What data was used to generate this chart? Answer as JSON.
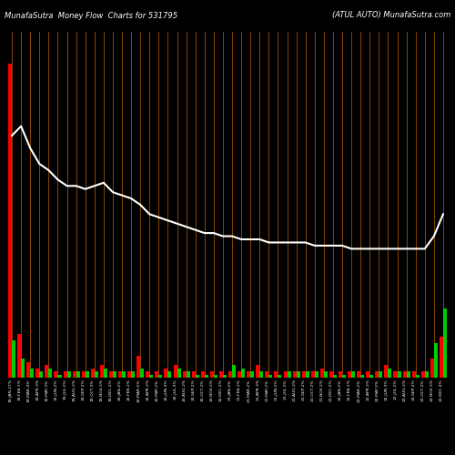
{
  "title_left": "MunafaSutra  Money Flow  Charts for 531795",
  "title_right": "(ATUL AUTO) MunafaSutra.com",
  "background_color": "#000000",
  "grid_color": "#8B4500",
  "line_color": "#ffffff",
  "red_color": "#ff0000",
  "green_color": "#00cc00",
  "categories": [
    "19-JAN-27%",
    "19-FEB-7%",
    "19-MAR-4%",
    "19-APR-3%",
    "19-MAY-3%",
    "19-JUN-2%",
    "19-JUL-2%",
    "19-AUG-2%",
    "19-SEP-2%",
    "19-OCT-3%",
    "19-NOV-3%",
    "19-DEC-2%",
    "20-JAN-2%",
    "20-FEB-2%",
    "20-MAR-5%",
    "20-APR-2%",
    "20-MAY-2%",
    "20-JUN-3%",
    "20-JUL-3%",
    "20-AUG-2%",
    "20-SEP-2%",
    "20-OCT-2%",
    "20-NOV-2%",
    "20-DEC-2%",
    "21-JAN-2%",
    "21-FEB-2%",
    "21-MAR-2%",
    "21-APR-3%",
    "21-MAY-2%",
    "21-JUN-2%",
    "21-JUL-2%",
    "21-AUG-2%",
    "21-SEP-2%",
    "21-OCT-2%",
    "21-NOV-2%",
    "21-DEC-2%",
    "22-JAN-2%",
    "22-FEB-2%",
    "22-MAR-2%",
    "22-APR-2%",
    "22-MAY-2%",
    "22-JUN-3%",
    "22-JUL-2%",
    "22-AUG-2%",
    "22-SEP-2%",
    "22-OCT-2%",
    "22-NOV-3%",
    "22-DEC-4%"
  ],
  "red_values": [
    100,
    14,
    5,
    3,
    4,
    2,
    2,
    2,
    2,
    3,
    4,
    2,
    2,
    2,
    7,
    2,
    2,
    3,
    4,
    2,
    2,
    2,
    2,
    2,
    2,
    2,
    2,
    4,
    2,
    2,
    2,
    2,
    2,
    2,
    3,
    2,
    2,
    2,
    2,
    2,
    2,
    4,
    2,
    2,
    2,
    2,
    6,
    13
  ],
  "green_values": [
    12,
    6,
    3,
    2,
    3,
    1,
    2,
    2,
    2,
    2,
    3,
    2,
    2,
    2,
    3,
    1,
    1,
    2,
    3,
    2,
    1,
    1,
    1,
    1,
    4,
    3,
    2,
    2,
    1,
    1,
    2,
    2,
    2,
    2,
    2,
    1,
    1,
    2,
    1,
    1,
    2,
    3,
    2,
    2,
    1,
    2,
    11,
    22
  ],
  "line_values": [
    77,
    80,
    73,
    68,
    66,
    63,
    61,
    61,
    60,
    61,
    62,
    59,
    58,
    57,
    55,
    52,
    51,
    50,
    49,
    48,
    47,
    46,
    46,
    45,
    45,
    44,
    44,
    44,
    43,
    43,
    43,
    43,
    43,
    42,
    42,
    42,
    42,
    41,
    41,
    41,
    41,
    41,
    41,
    41,
    41,
    41,
    45,
    52
  ],
  "ylim_max": 110,
  "bar_width": 0.4
}
